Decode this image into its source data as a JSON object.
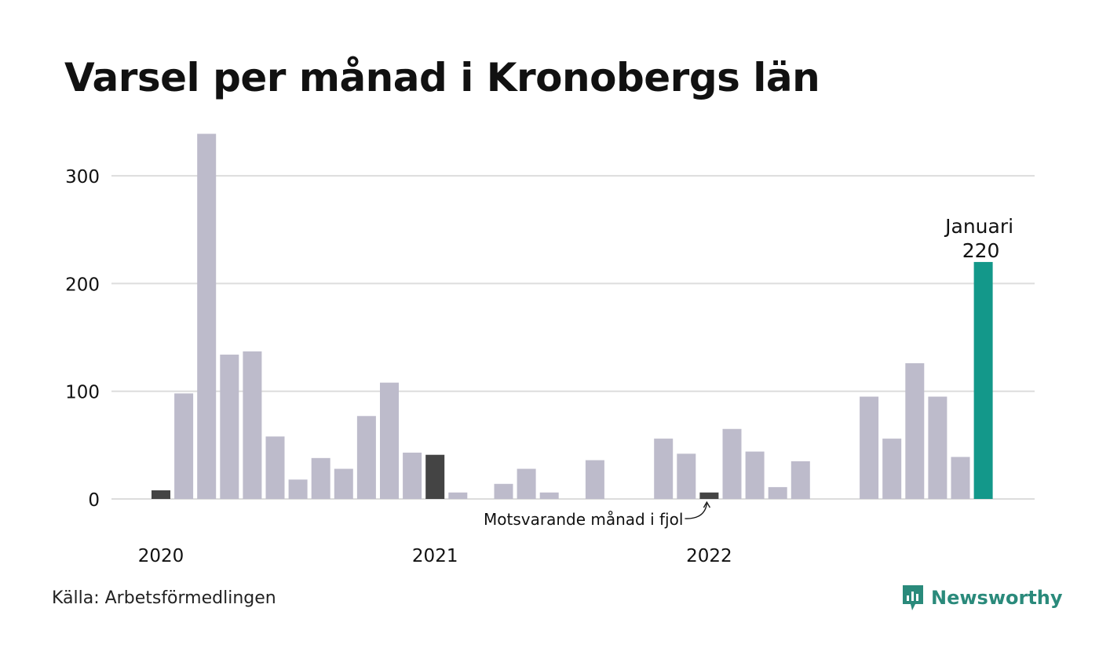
{
  "title": "Varsel per månad i Kronobergs län",
  "source": "Källa: Arbetsförmedlingen",
  "logo_text": "Newsworthy",
  "colors": {
    "bar": "#bdbbcb",
    "highlight_prev_year": "#444444",
    "current": "#13988a",
    "grid": "#dddddd",
    "logo": "#2a8a7b"
  },
  "chart_data": {
    "type": "bar",
    "ylim": [
      0,
      340
    ],
    "yticks": [
      0,
      100,
      200,
      300
    ],
    "year_labels": [
      {
        "label": "2020",
        "index": 0
      },
      {
        "label": "2021",
        "index": 12
      },
      {
        "label": "2022",
        "index": 24
      }
    ],
    "values": [
      8,
      98,
      339,
      134,
      137,
      58,
      18,
      38,
      28,
      77,
      108,
      43,
      41,
      6,
      0,
      14,
      28,
      6,
      0,
      36,
      0,
      0,
      56,
      42,
      6,
      65,
      44,
      11,
      35,
      0,
      0,
      95,
      56,
      126,
      95,
      39,
      220
    ],
    "highlight_prev_year": [
      0,
      12,
      24
    ],
    "current_index": 36,
    "current_label": "Januari",
    "current_value_label": "220",
    "annotation": "Motsvarande månad i fjol"
  }
}
